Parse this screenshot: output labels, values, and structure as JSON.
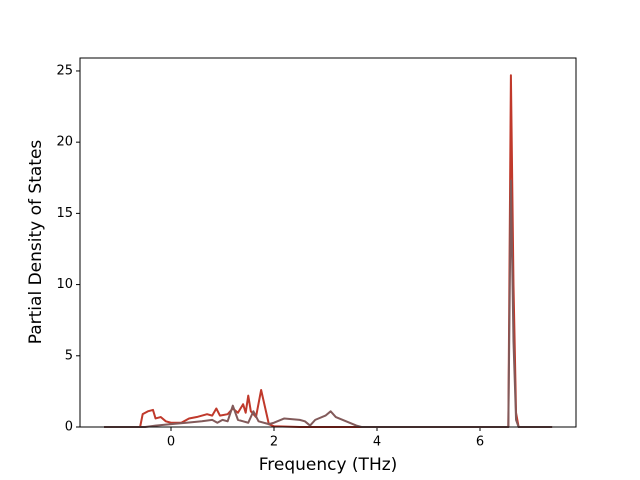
{
  "chart_data": {
    "type": "line",
    "xlabel": "Frequency (THz)",
    "ylabel": "Partial Density of States",
    "xlim": [
      -1.767,
      7.864
    ],
    "ylim": [
      0,
      25.91
    ],
    "xticks": [
      0,
      2,
      4,
      6
    ],
    "yticks": [
      0,
      5,
      10,
      15,
      20,
      25
    ],
    "series": [
      {
        "color": "#c0392b",
        "x": [
          -1.3,
          -0.6,
          -0.55,
          -0.45,
          -0.35,
          -0.3,
          -0.2,
          -0.1,
          0,
          0.2,
          0.35,
          0.5,
          0.7,
          0.8,
          0.88,
          0.95,
          1.1,
          1.2,
          1.3,
          1.4,
          1.45,
          1.5,
          1.55,
          1.65,
          1.75,
          1.85,
          1.9,
          2.0,
          2.5,
          6.55,
          6.6,
          6.65,
          6.7,
          6.75,
          7.4
        ],
        "values": [
          0,
          0,
          0.9,
          1.1,
          1.2,
          0.6,
          0.7,
          0.4,
          0.3,
          0.3,
          0.6,
          0.7,
          0.9,
          0.8,
          1.3,
          0.8,
          0.9,
          1.3,
          1.0,
          1.6,
          1.0,
          2.2,
          1.1,
          0.7,
          2.6,
          1.0,
          0.2,
          0.05,
          0,
          0,
          24.7,
          10,
          1.0,
          0,
          0
        ]
      },
      {
        "color": "#825a5a",
        "x": [
          -1.3,
          -0.5,
          -0.3,
          0,
          0.3,
          0.6,
          0.8,
          0.9,
          1.0,
          1.1,
          1.2,
          1.3,
          1.4,
          1.5,
          1.6,
          1.7,
          1.9,
          2.0,
          2.2,
          2.5,
          2.6,
          2.7,
          2.8,
          3.0,
          3.1,
          3.2,
          3.4,
          3.6,
          3.7,
          6.55,
          6.6,
          6.65,
          6.7,
          6.75,
          7.4
        ],
        "values": [
          0,
          0,
          0.1,
          0.2,
          0.3,
          0.4,
          0.5,
          0.3,
          0.5,
          0.4,
          1.5,
          0.5,
          0.4,
          0.3,
          1.1,
          0.4,
          0.2,
          0.3,
          0.6,
          0.5,
          0.4,
          0.1,
          0.5,
          0.8,
          1.1,
          0.7,
          0.4,
          0.1,
          0,
          0,
          17.3,
          6,
          0.5,
          0,
          0
        ]
      }
    ]
  }
}
